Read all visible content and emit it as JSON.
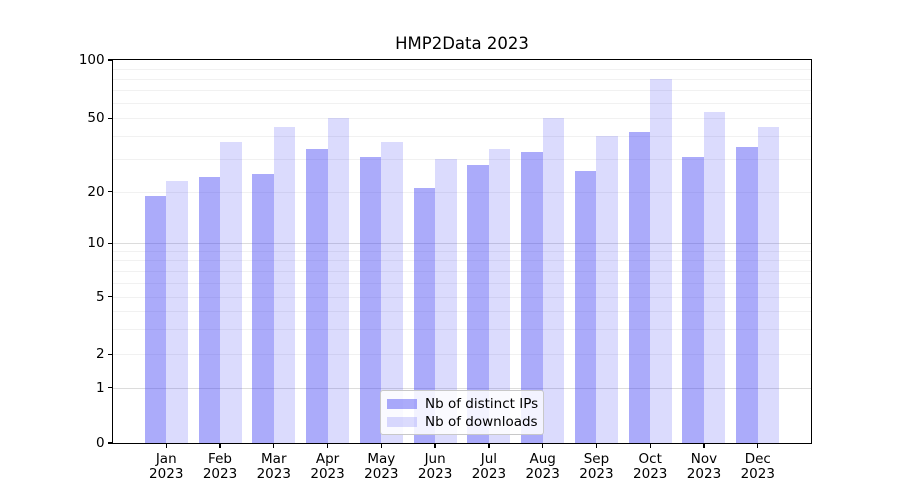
{
  "title": "HMP2Data 2023",
  "chart_data": {
    "type": "bar",
    "title": "HMP2Data 2023",
    "categories": [
      "Jan",
      "Feb",
      "Mar",
      "Apr",
      "May",
      "Jun",
      "Jul",
      "Aug",
      "Sep",
      "Oct",
      "Nov",
      "Dec"
    ],
    "category_year": "2023",
    "series": [
      {
        "name": "Nb of distinct IPs",
        "color": "#3C3CF3",
        "alpha": 0.43,
        "values": [
          19,
          24,
          25,
          34,
          31,
          21,
          28,
          33,
          26,
          42,
          31,
          35
        ]
      },
      {
        "name": "Nb of downloads",
        "color": "#3C3CF3",
        "alpha": 0.185,
        "values": [
          23,
          37,
          45,
          50,
          37,
          30,
          34,
          50,
          40,
          80,
          54,
          45
        ]
      }
    ],
    "yscale": "symlog",
    "ylim": [
      0,
      100
    ],
    "yticks": [
      0,
      1,
      2,
      5,
      10,
      20,
      50,
      100
    ],
    "grid": {
      "major": [
        1,
        10
      ],
      "minor": [
        2,
        3,
        4,
        5,
        6,
        7,
        8,
        9,
        20,
        30,
        40,
        50,
        60,
        70,
        80,
        90
      ]
    },
    "legend_position": "lower center",
    "bar_width": 0.4
  }
}
